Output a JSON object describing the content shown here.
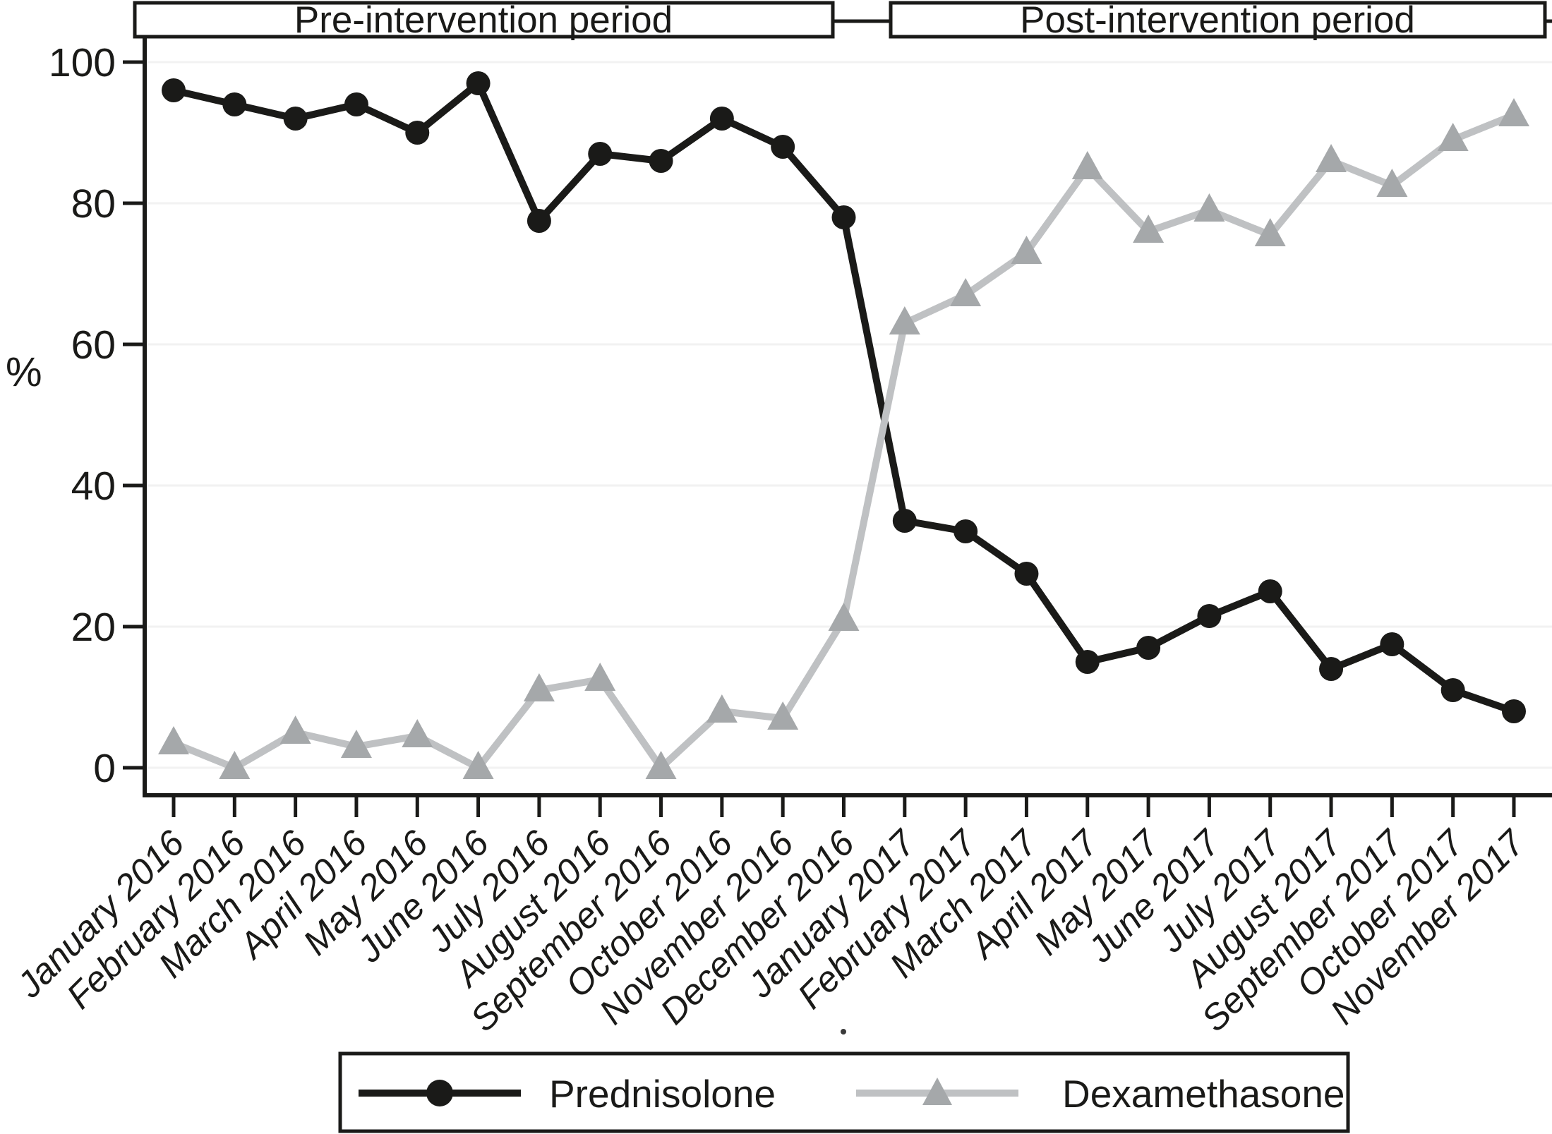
{
  "chart_data": {
    "type": "line",
    "title": "",
    "xlabel": "",
    "ylabel": "%",
    "ylim": [
      0,
      100
    ],
    "y_ticks": [
      0,
      20,
      40,
      60,
      80,
      100
    ],
    "grid": true,
    "x_tick_rotation": 45,
    "legend_position": "bottom-center",
    "period_annotations": [
      {
        "label": "Pre-intervention period"
      },
      {
        "label": "Post-intervention period"
      }
    ],
    "categories": [
      "January 2016",
      "February 2016",
      "March 2016",
      "April 2016",
      "May 2016",
      "June 2016",
      "July 2016",
      "August 2016",
      "September 2016",
      "October 2016",
      "November 2016",
      "December 2016",
      "January 2017",
      "February 2017",
      "March 2017",
      "April 2017",
      "May 2017",
      "June 2017",
      "July 2017",
      "August 2017",
      "September 2017",
      "October 2017",
      "November 2017"
    ],
    "series": [
      {
        "name": "Prednisolone",
        "marker": "circle",
        "color": "#1a1a18",
        "marker_color": "#1a1a18",
        "values": [
          96,
          94,
          92,
          94,
          90,
          97,
          77.5,
          87,
          86,
          92,
          88,
          78,
          35,
          33.5,
          27.5,
          15,
          17,
          21.5,
          25,
          14,
          17.5,
          11,
          8
        ]
      },
      {
        "name": "Dexamethasone",
        "marker": "triangle",
        "color": "#bfc1c3",
        "marker_color": "#a5a8aa",
        "values": [
          3.5,
          0,
          5,
          3,
          4.5,
          0,
          11,
          12.5,
          0,
          8,
          7,
          21,
          63,
          67,
          73,
          85,
          76,
          79,
          75.5,
          86,
          82.5,
          89,
          92.5
        ]
      }
    ],
    "gridline_color": "#f2f2f2",
    "frame_color": "#1a1a18"
  }
}
